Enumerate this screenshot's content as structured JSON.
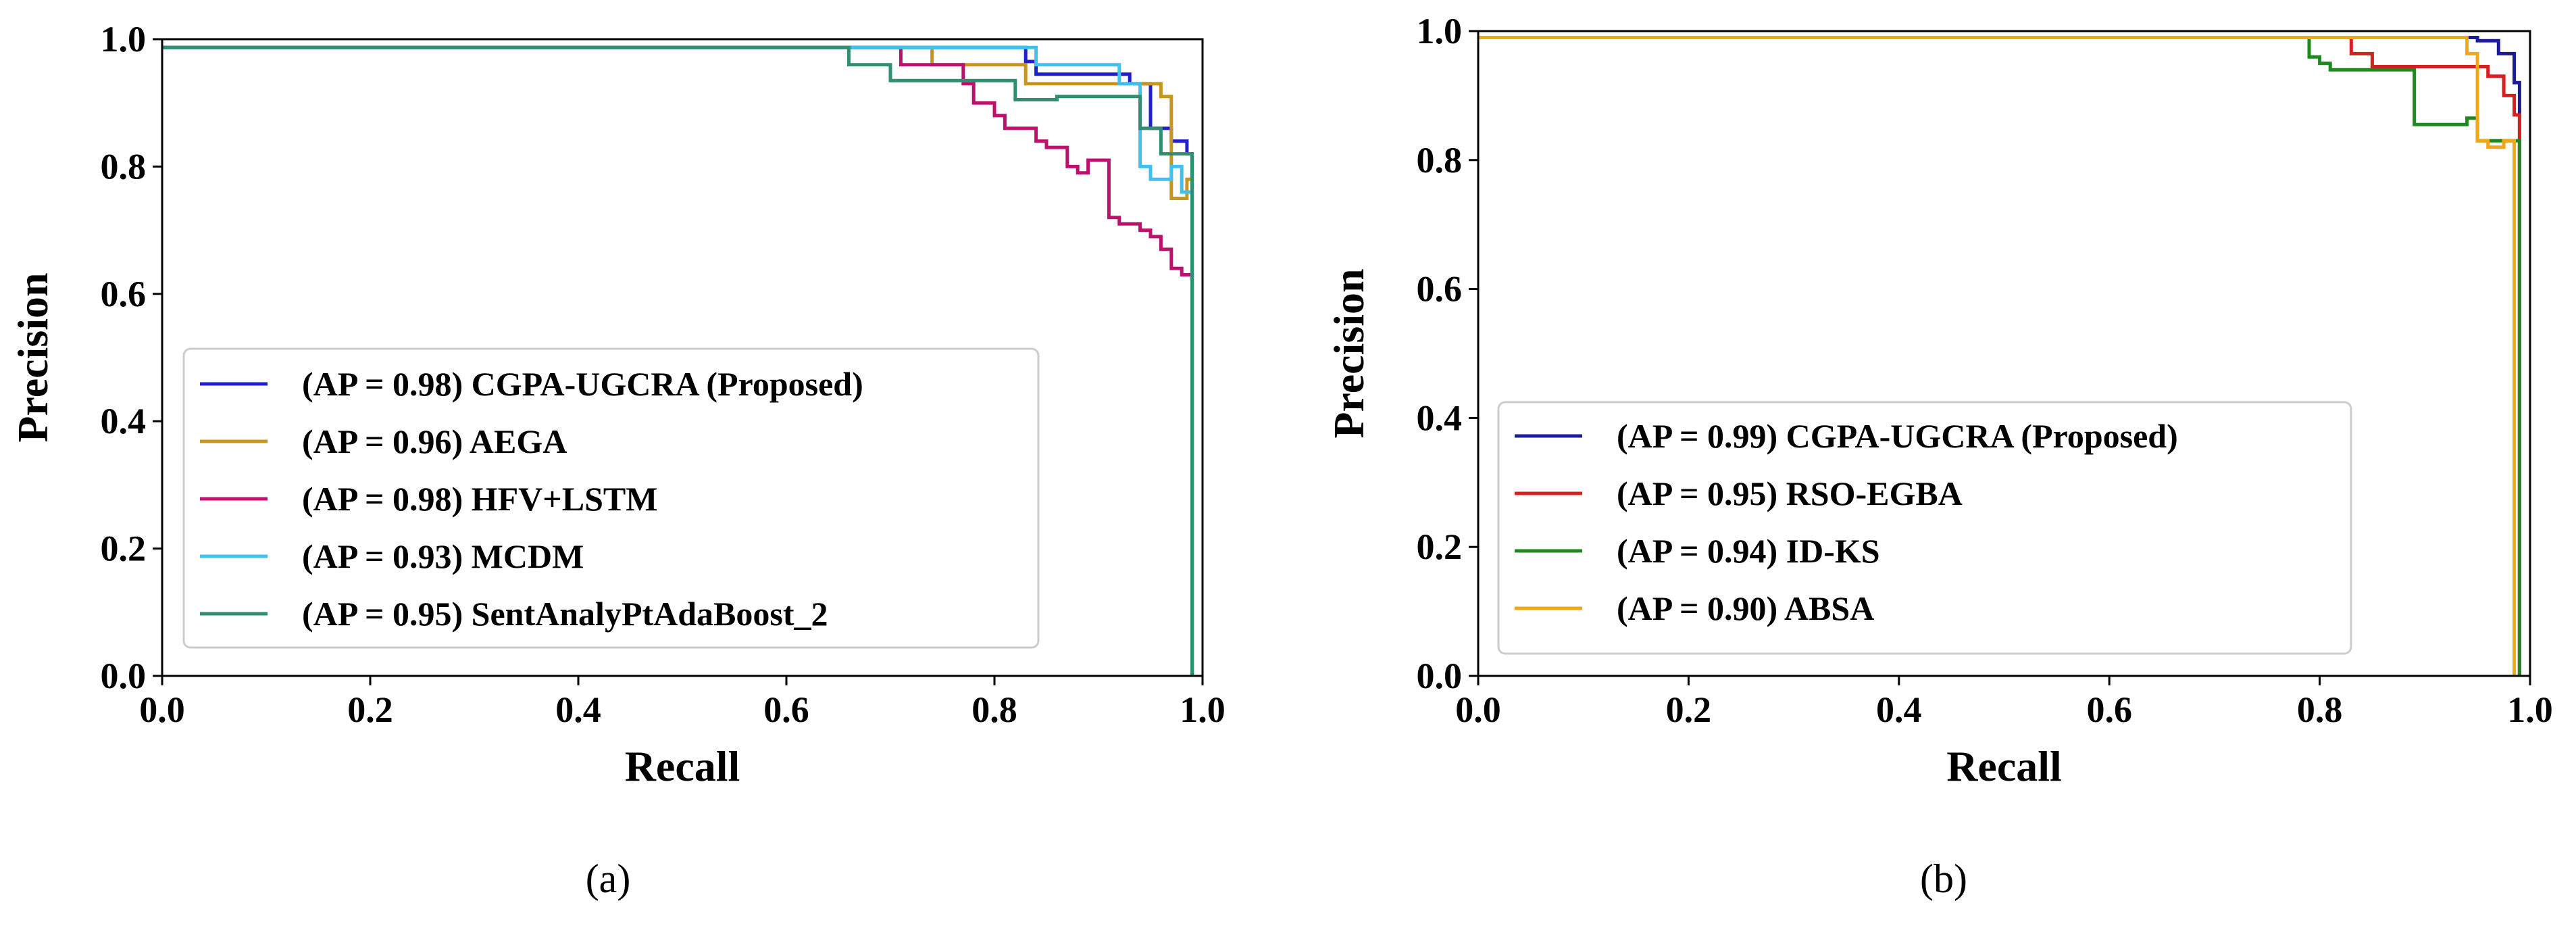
{
  "chart_data": [
    {
      "type": "line",
      "panel_label": "(a)",
      "xlabel": "Recall",
      "ylabel": "Precision",
      "xlim": [
        0.0,
        1.0
      ],
      "ylim": [
        0.0,
        1.0
      ],
      "xticks": [
        "0.0",
        "0.2",
        "0.4",
        "0.6",
        "0.8",
        "1.0"
      ],
      "yticks": [
        "0.0",
        "0.2",
        "0.4",
        "0.6",
        "0.8",
        "1.0"
      ],
      "grid": false,
      "legend_position": "lower-left",
      "series": [
        {
          "name": "(AP = 0.98) CGPA-UGCRA (Proposed)",
          "color": "#1f1fd0",
          "x": [
            0.0,
            0.83,
            0.83,
            0.84,
            0.84,
            0.93,
            0.93,
            0.95,
            0.95,
            0.97,
            0.97,
            0.985,
            0.985,
            0.99,
            0.99
          ],
          "y": [
            0.987,
            0.987,
            0.965,
            0.965,
            0.945,
            0.945,
            0.93,
            0.93,
            0.86,
            0.86,
            0.84,
            0.84,
            0.82,
            0.82,
            0.0
          ]
        },
        {
          "name": "(AP = 0.96) AEGA",
          "color": "#c8961e",
          "x": [
            0.0,
            0.74,
            0.74,
            0.83,
            0.83,
            0.96,
            0.96,
            0.97,
            0.97,
            0.985,
            0.985,
            0.99,
            0.99
          ],
          "y": [
            0.987,
            0.987,
            0.96,
            0.96,
            0.93,
            0.93,
            0.91,
            0.91,
            0.75,
            0.75,
            0.78,
            0.78,
            0.0
          ]
        },
        {
          "name": "(AP = 0.98) HFV+LSTM",
          "color": "#c0106e",
          "x": [
            0.0,
            0.71,
            0.71,
            0.77,
            0.77,
            0.78,
            0.78,
            0.8,
            0.8,
            0.81,
            0.81,
            0.84,
            0.84,
            0.85,
            0.85,
            0.87,
            0.87,
            0.88,
            0.88,
            0.89,
            0.89,
            0.91,
            0.91,
            0.92,
            0.92,
            0.94,
            0.94,
            0.95,
            0.95,
            0.96,
            0.96,
            0.97,
            0.97,
            0.98,
            0.98,
            0.99,
            0.99
          ],
          "y": [
            0.987,
            0.987,
            0.96,
            0.96,
            0.93,
            0.93,
            0.9,
            0.9,
            0.88,
            0.88,
            0.86,
            0.86,
            0.84,
            0.84,
            0.83,
            0.83,
            0.8,
            0.8,
            0.79,
            0.79,
            0.81,
            0.81,
            0.72,
            0.72,
            0.71,
            0.71,
            0.7,
            0.7,
            0.69,
            0.69,
            0.67,
            0.67,
            0.64,
            0.64,
            0.63,
            0.63,
            0.0
          ]
        },
        {
          "name": "(AP = 0.93) MCDM",
          "color": "#42c0f0",
          "x": [
            0.0,
            0.84,
            0.84,
            0.92,
            0.92,
            0.94,
            0.94,
            0.95,
            0.95,
            0.97,
            0.97,
            0.98,
            0.98,
            0.99,
            0.99
          ],
          "y": [
            0.987,
            0.987,
            0.96,
            0.96,
            0.93,
            0.93,
            0.8,
            0.8,
            0.78,
            0.78,
            0.8,
            0.8,
            0.76,
            0.76,
            0.0
          ]
        },
        {
          "name": "(AP = 0.95) SentAnalyPtAdaBoost_2",
          "color": "#2f8f70",
          "x": [
            0.0,
            0.66,
            0.66,
            0.7,
            0.7,
            0.82,
            0.82,
            0.86,
            0.86,
            0.94,
            0.94,
            0.96,
            0.96,
            0.99,
            0.99
          ],
          "y": [
            0.987,
            0.987,
            0.96,
            0.96,
            0.935,
            0.935,
            0.905,
            0.905,
            0.91,
            0.91,
            0.86,
            0.86,
            0.82,
            0.82,
            0.0
          ]
        }
      ]
    },
    {
      "type": "line",
      "panel_label": "(b)",
      "xlabel": "Recall",
      "ylabel": "Precision",
      "xlim": [
        0.0,
        1.0
      ],
      "ylim": [
        0.0,
        1.0
      ],
      "xticks": [
        "0.0",
        "0.2",
        "0.4",
        "0.6",
        "0.8",
        "1.0"
      ],
      "yticks": [
        "0.0",
        "0.2",
        "0.4",
        "0.6",
        "0.8",
        "1.0"
      ],
      "grid": false,
      "legend_position": "lower-left",
      "series": [
        {
          "name": "(AP = 0.99) CGPA-UGCRA (Proposed)",
          "color": "#1a1a9a",
          "x": [
            0.0,
            0.95,
            0.95,
            0.97,
            0.97,
            0.985,
            0.985,
            0.99,
            0.99
          ],
          "y": [
            0.99,
            0.99,
            0.985,
            0.985,
            0.965,
            0.965,
            0.92,
            0.92,
            0.0
          ]
        },
        {
          "name": "(AP = 0.95) RSO-EGBA",
          "color": "#d42020",
          "x": [
            0.0,
            0.83,
            0.83,
            0.85,
            0.85,
            0.96,
            0.96,
            0.975,
            0.975,
            0.985,
            0.985,
            0.99,
            0.99
          ],
          "y": [
            0.99,
            0.99,
            0.965,
            0.965,
            0.945,
            0.945,
            0.93,
            0.93,
            0.9,
            0.9,
            0.87,
            0.87,
            0.0
          ]
        },
        {
          "name": "(AP = 0.94) ID-KS",
          "color": "#1e8a1e",
          "x": [
            0.0,
            0.79,
            0.79,
            0.8,
            0.8,
            0.81,
            0.81,
            0.89,
            0.89,
            0.94,
            0.94,
            0.95,
            0.95,
            0.99,
            0.99
          ],
          "y": [
            0.99,
            0.99,
            0.96,
            0.96,
            0.95,
            0.95,
            0.94,
            0.94,
            0.855,
            0.855,
            0.865,
            0.865,
            0.83,
            0.83,
            0.0
          ]
        },
        {
          "name": "(AP = 0.90) ABSA",
          "color": "#f0a818",
          "x": [
            0.0,
            0.94,
            0.94,
            0.95,
            0.95,
            0.96,
            0.96,
            0.975,
            0.975,
            0.985,
            0.985
          ],
          "y": [
            0.99,
            0.99,
            0.965,
            0.965,
            0.83,
            0.83,
            0.82,
            0.82,
            0.83,
            0.83,
            0.0
          ]
        }
      ]
    }
  ]
}
